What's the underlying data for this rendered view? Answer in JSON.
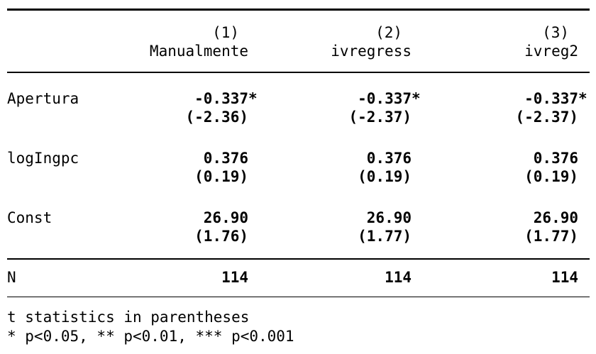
{
  "colors": {
    "background": "#ffffff",
    "text": "#000000",
    "rule": "#000000"
  },
  "table": {
    "columns": [
      {
        "number": "(1)",
        "name": "Manualmente"
      },
      {
        "number": "(2)",
        "name": "ivregress"
      },
      {
        "number": "(3)",
        "name": "ivreg2"
      }
    ],
    "rows": [
      {
        "label": "Apertura",
        "cells": [
          {
            "coef": "-0.337",
            "stars": "*",
            "tstat": "(-2.36)"
          },
          {
            "coef": "-0.337",
            "stars": "*",
            "tstat": "(-2.37)"
          },
          {
            "coef": "-0.337",
            "stars": "*",
            "tstat": "(-2.37)"
          }
        ]
      },
      {
        "label": "logIngpc",
        "cells": [
          {
            "coef": "0.376",
            "stars": "",
            "tstat": "(0.19)"
          },
          {
            "coef": "0.376",
            "stars": "",
            "tstat": "(0.19)"
          },
          {
            "coef": "0.376",
            "stars": "",
            "tstat": "(0.19)"
          }
        ]
      },
      {
        "label": "Const",
        "cells": [
          {
            "coef": "26.90",
            "stars": "",
            "tstat": "(1.76)"
          },
          {
            "coef": "26.90",
            "stars": "",
            "tstat": "(1.77)"
          },
          {
            "coef": "26.90",
            "stars": "",
            "tstat": "(1.77)"
          }
        ]
      }
    ],
    "stats": {
      "label": "N",
      "values": [
        "114",
        "114",
        "114"
      ]
    },
    "notes": [
      "t statistics in parentheses",
      "* p<0.05, ** p<0.01, *** p<0.001"
    ]
  }
}
